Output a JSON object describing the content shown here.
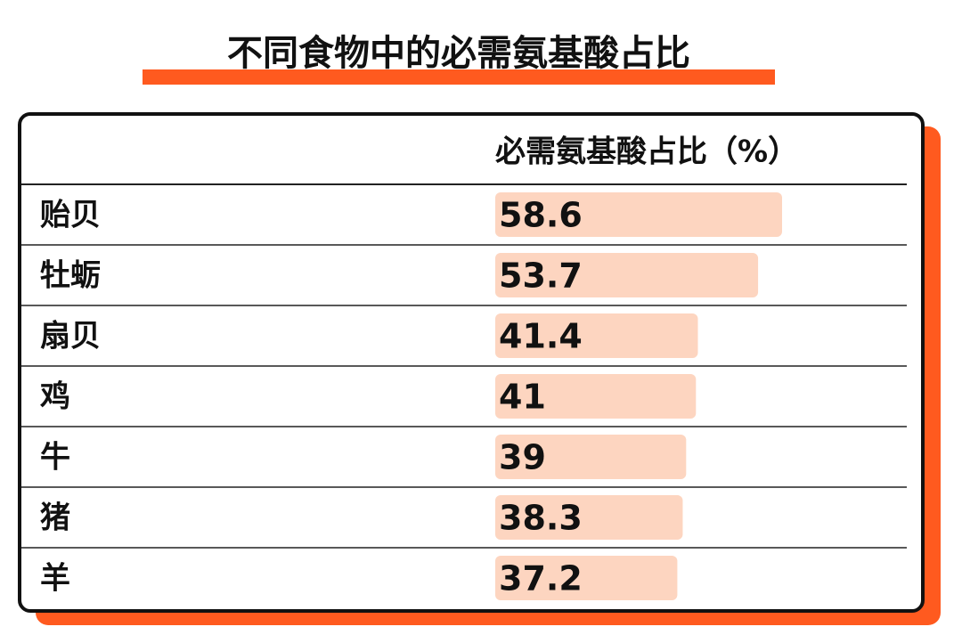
{
  "chart_data": {
    "type": "bar",
    "title": "不同食物中的必需氨基酸占比",
    "column_header": "必需氨基酸占比（%）",
    "categories": [
      "贻贝",
      "牡蛎",
      "扇贝",
      "鸡",
      "牛",
      "猪",
      "羊"
    ],
    "values": [
      58.6,
      53.7,
      41.4,
      41,
      39,
      38.3,
      37.2
    ],
    "color": "#fdd5c0"
  }
}
